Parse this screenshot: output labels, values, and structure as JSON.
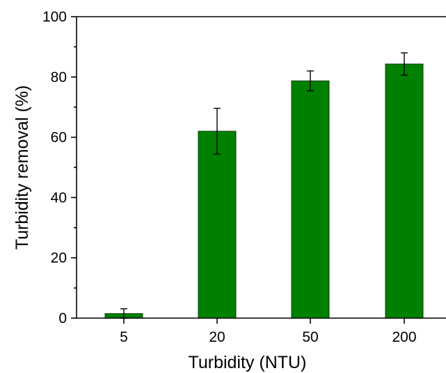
{
  "chart_data": {
    "type": "bar",
    "title": "",
    "xlabel": "Turbidity (NTU)",
    "ylabel": "Turbidity removal (%)",
    "categories": [
      "5",
      "20",
      "50",
      "200"
    ],
    "series": [
      {
        "values": [
          1.5,
          62.0,
          78.7,
          84.3
        ],
        "errors": [
          1.6,
          7.6,
          3.3,
          3.7
        ],
        "color": "#008000"
      }
    ],
    "ylim": [
      0,
      100
    ],
    "yticks": [
      0,
      20,
      40,
      60,
      80,
      100
    ],
    "grid": false,
    "legend": "none"
  }
}
